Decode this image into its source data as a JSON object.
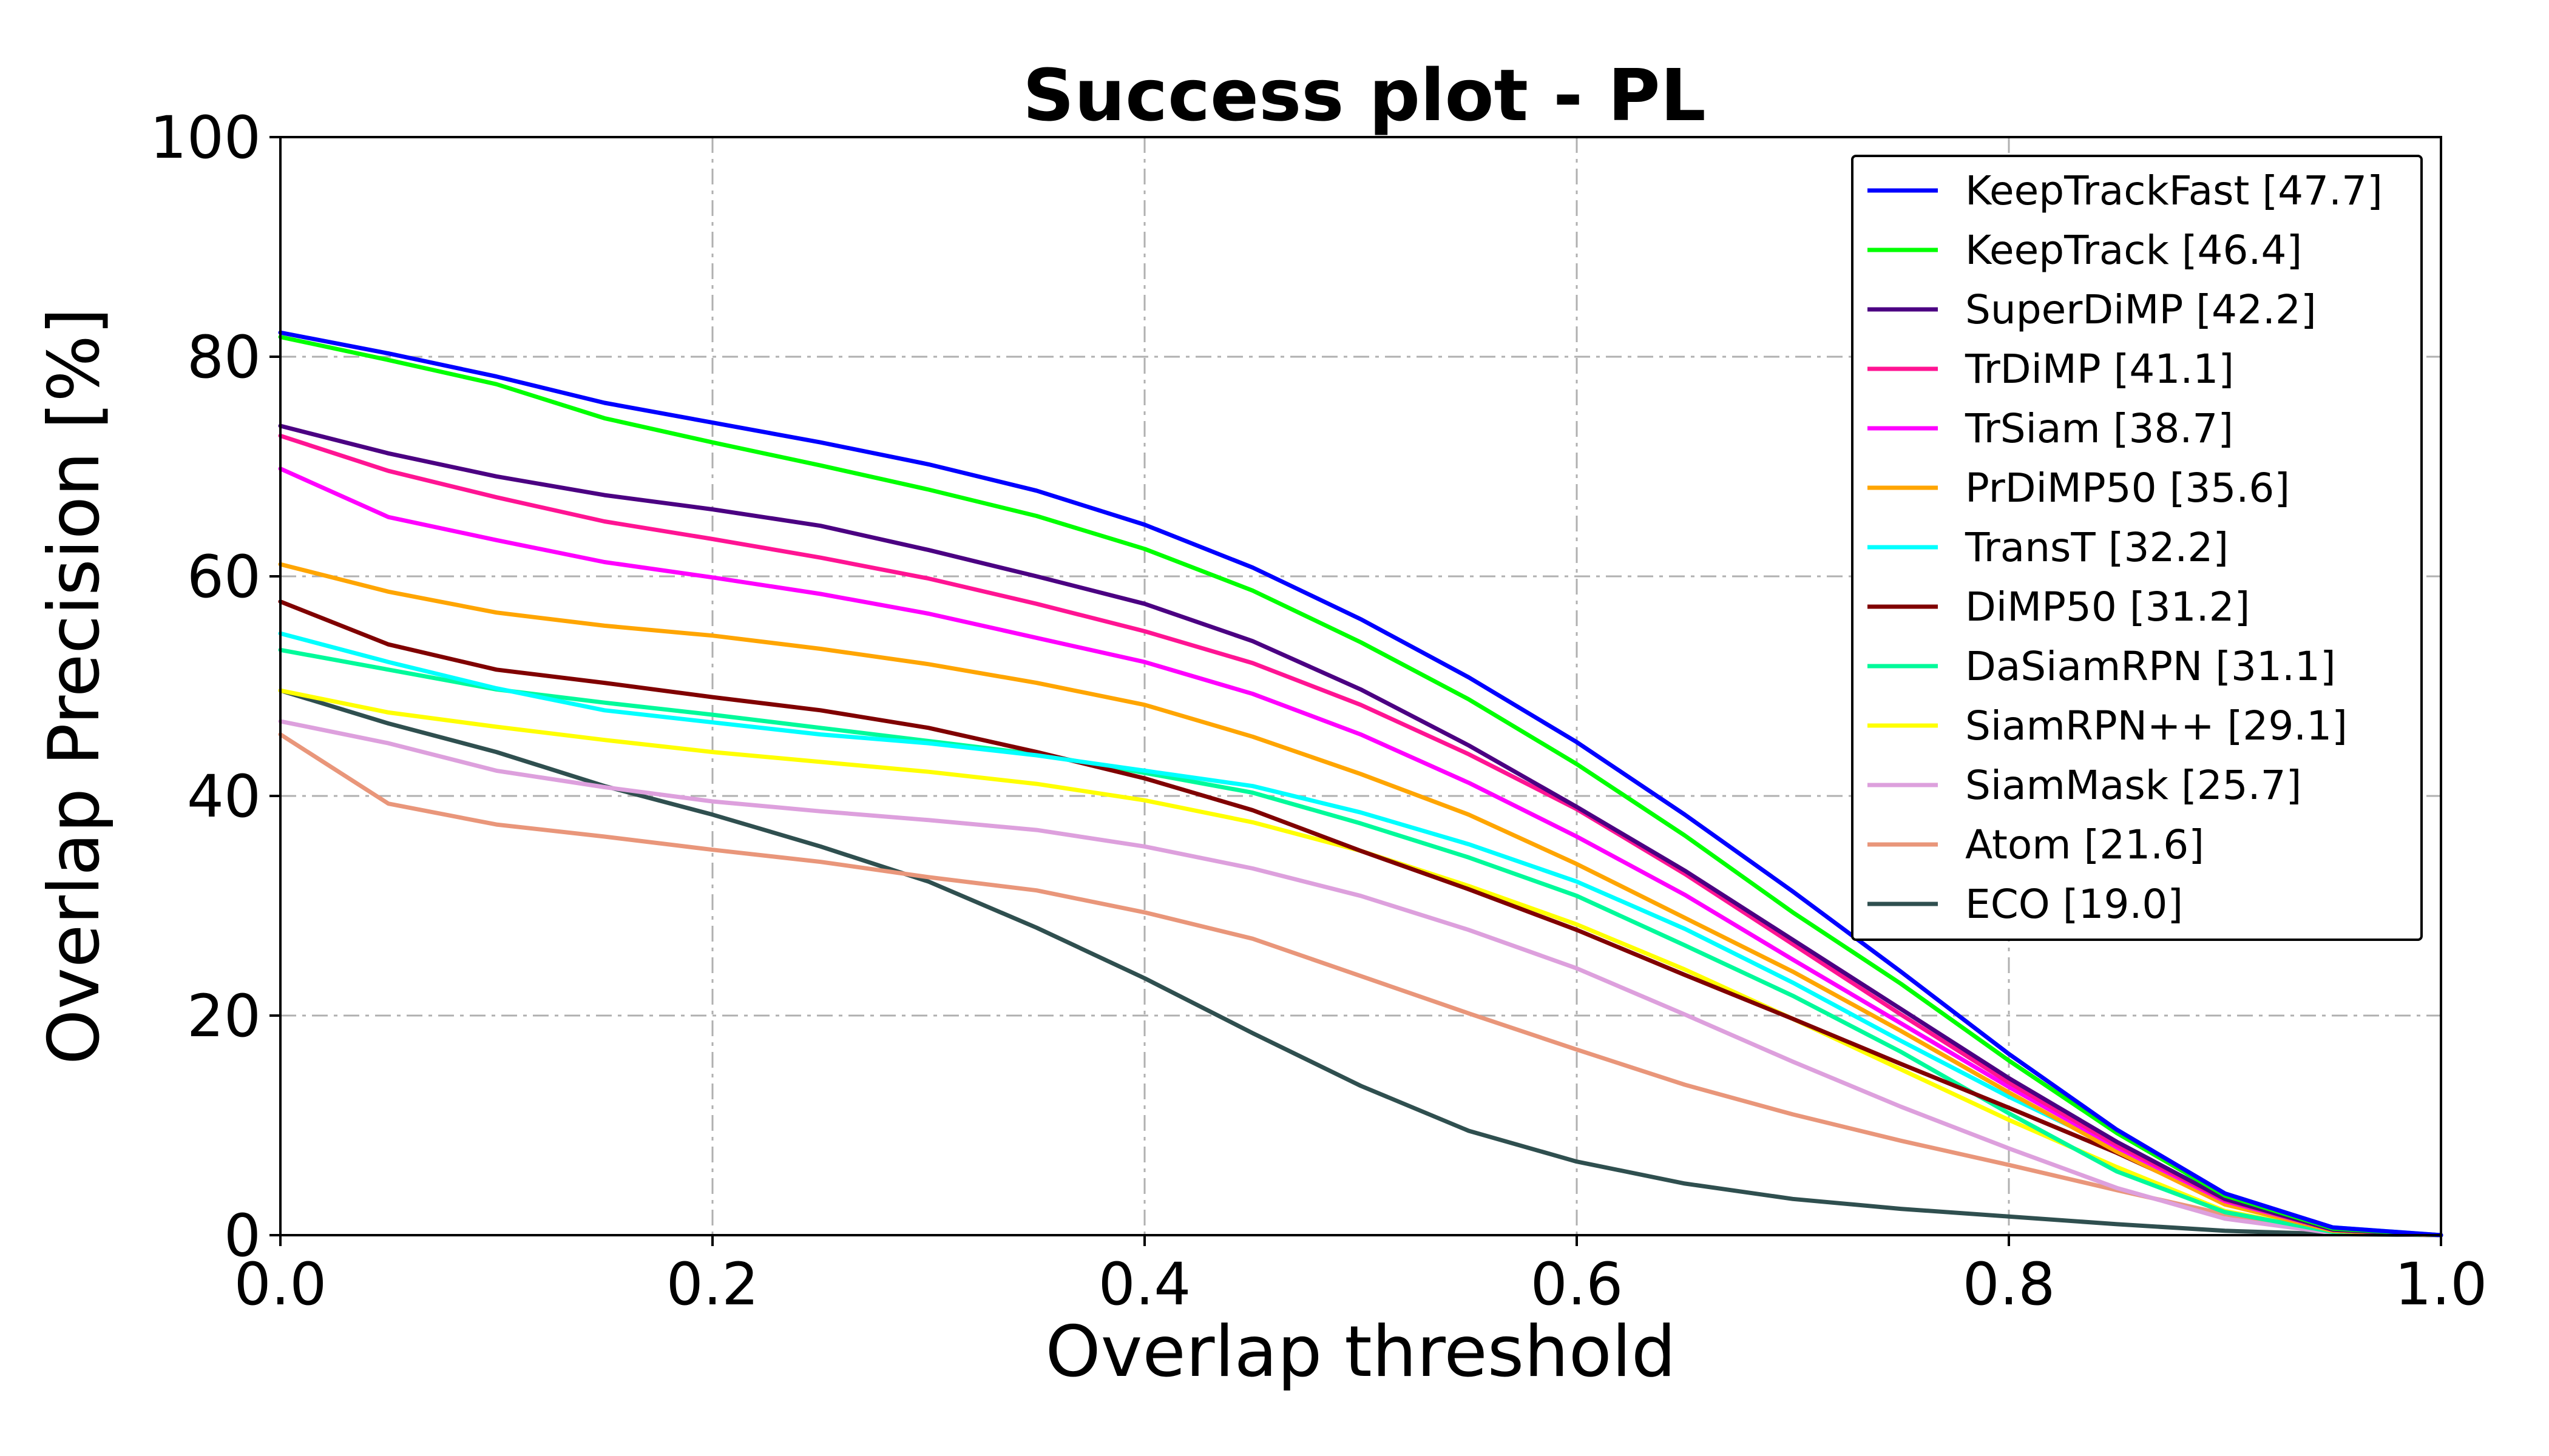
{
  "chart_data": {
    "type": "line",
    "title": "Success plot - PL",
    "xlabel": "Overlap threshold",
    "ylabel": "Overlap Precision [%]",
    "xlim": [
      0.0,
      1.0
    ],
    "ylim": [
      0,
      100
    ],
    "x_ticks": [
      "0.0",
      "0.2",
      "0.4",
      "0.6",
      "0.8",
      "1.0"
    ],
    "y_ticks": [
      "0",
      "20",
      "40",
      "60",
      "80",
      "100"
    ],
    "grid": true,
    "legend_position": "top-right",
    "x": [
      0.0,
      0.05,
      0.1,
      0.15,
      0.2,
      0.25,
      0.3,
      0.35,
      0.4,
      0.45,
      0.5,
      0.55,
      0.6,
      0.65,
      0.7,
      0.75,
      0.8,
      0.85,
      0.9,
      0.95,
      1.0
    ],
    "series": [
      {
        "name": "KeepTrackFast [47.7]",
        "color": "#0000ff",
        "values": [
          82.2,
          80.3,
          78.2,
          75.8,
          74.0,
          72.2,
          70.2,
          67.8,
          64.7,
          60.8,
          56.1,
          50.8,
          44.9,
          38.3,
          31.3,
          24.0,
          16.5,
          9.6,
          3.8,
          0.7,
          0.0
        ]
      },
      {
        "name": "KeepTrack [46.4]",
        "color": "#00ff00",
        "values": [
          81.8,
          79.7,
          77.5,
          74.4,
          72.2,
          70.1,
          67.9,
          65.5,
          62.5,
          58.7,
          54.0,
          48.8,
          42.9,
          36.4,
          29.4,
          22.9,
          15.9,
          9.3,
          3.6,
          0.6,
          0.0
        ]
      },
      {
        "name": "SuperDiMP [42.2]",
        "color": "#4b0082",
        "values": [
          73.7,
          71.2,
          69.1,
          67.4,
          66.1,
          64.6,
          62.4,
          60.0,
          57.5,
          54.1,
          49.7,
          44.6,
          39.0,
          33.2,
          26.9,
          20.6,
          14.3,
          8.5,
          3.3,
          0.5,
          0.0
        ]
      },
      {
        "name": "TrDiMP [41.1]",
        "color": "#ff1493",
        "values": [
          72.8,
          69.6,
          67.2,
          65.0,
          63.4,
          61.7,
          59.8,
          57.5,
          55.0,
          52.1,
          48.3,
          43.8,
          38.8,
          32.9,
          26.5,
          20.1,
          13.9,
          8.2,
          3.2,
          0.5,
          0.0
        ]
      },
      {
        "name": "TrSiam [38.7]",
        "color": "#ff00ff",
        "values": [
          69.8,
          65.4,
          63.3,
          61.3,
          59.9,
          58.4,
          56.6,
          54.4,
          52.2,
          49.3,
          45.6,
          41.2,
          36.3,
          31.0,
          25.1,
          19.3,
          13.5,
          8.0,
          3.1,
          0.5,
          0.0
        ]
      },
      {
        "name": "PrDiMP50 [35.6]",
        "color": "#ffa500",
        "values": [
          61.1,
          58.6,
          56.7,
          55.5,
          54.6,
          53.4,
          52.0,
          50.3,
          48.3,
          45.4,
          42.0,
          38.3,
          33.8,
          28.9,
          24.0,
          18.6,
          13.0,
          7.6,
          2.8,
          0.4,
          0.0
        ]
      },
      {
        "name": "TransT [32.2]",
        "color": "#00ffff",
        "values": [
          54.8,
          52.2,
          49.8,
          47.8,
          46.7,
          45.6,
          44.8,
          43.7,
          42.3,
          40.9,
          38.5,
          35.6,
          32.2,
          27.9,
          23.0,
          17.7,
          12.6,
          7.9,
          3.7,
          0.7,
          0.0
        ]
      },
      {
        "name": "DiMP50 [31.2]",
        "color": "#800000",
        "values": [
          57.7,
          53.8,
          51.5,
          50.3,
          49.0,
          47.8,
          46.2,
          44.0,
          41.6,
          38.7,
          35.0,
          31.5,
          27.8,
          23.7,
          19.7,
          15.6,
          11.6,
          7.5,
          3.0,
          0.4,
          0.0
        ]
      },
      {
        "name": "DaSiamRPN [31.1]",
        "color": "#00fa9a",
        "values": [
          53.3,
          51.5,
          49.7,
          48.5,
          47.4,
          46.2,
          45.0,
          43.8,
          42.1,
          40.3,
          37.5,
          34.4,
          30.9,
          26.4,
          21.8,
          16.7,
          11.1,
          5.8,
          2.1,
          0.3,
          0.0
        ]
      },
      {
        "name": "SiamRPN++ [29.1]",
        "color": "#ffff00",
        "values": [
          49.6,
          47.6,
          46.3,
          45.1,
          44.0,
          43.1,
          42.2,
          41.1,
          39.6,
          37.6,
          35.0,
          31.8,
          28.3,
          24.2,
          19.7,
          15.1,
          10.5,
          6.2,
          2.2,
          0.3,
          0.0
        ]
      },
      {
        "name": "SiamMask [25.7]",
        "color": "#dda0dd",
        "values": [
          46.8,
          44.8,
          42.3,
          40.8,
          39.5,
          38.6,
          37.8,
          36.9,
          35.4,
          33.4,
          30.9,
          27.8,
          24.3,
          20.1,
          15.8,
          11.7,
          7.9,
          4.3,
          1.5,
          0.2,
          0.0
        ]
      },
      {
        "name": "Atom [21.6]",
        "color": "#e9967a",
        "values": [
          45.6,
          39.3,
          37.4,
          36.3,
          35.1,
          34.0,
          32.6,
          31.4,
          29.4,
          27.0,
          23.6,
          20.2,
          16.9,
          13.7,
          11.0,
          8.6,
          6.4,
          4.1,
          1.9,
          0.3,
          0.0
        ]
      },
      {
        "name": "ECO [19.0]",
        "color": "#2f4f4f",
        "values": [
          49.6,
          46.6,
          44.0,
          40.9,
          38.3,
          35.4,
          32.2,
          28.0,
          23.4,
          18.4,
          13.6,
          9.5,
          6.7,
          4.7,
          3.3,
          2.4,
          1.7,
          1.0,
          0.4,
          0.1,
          0.0
        ]
      }
    ]
  }
}
